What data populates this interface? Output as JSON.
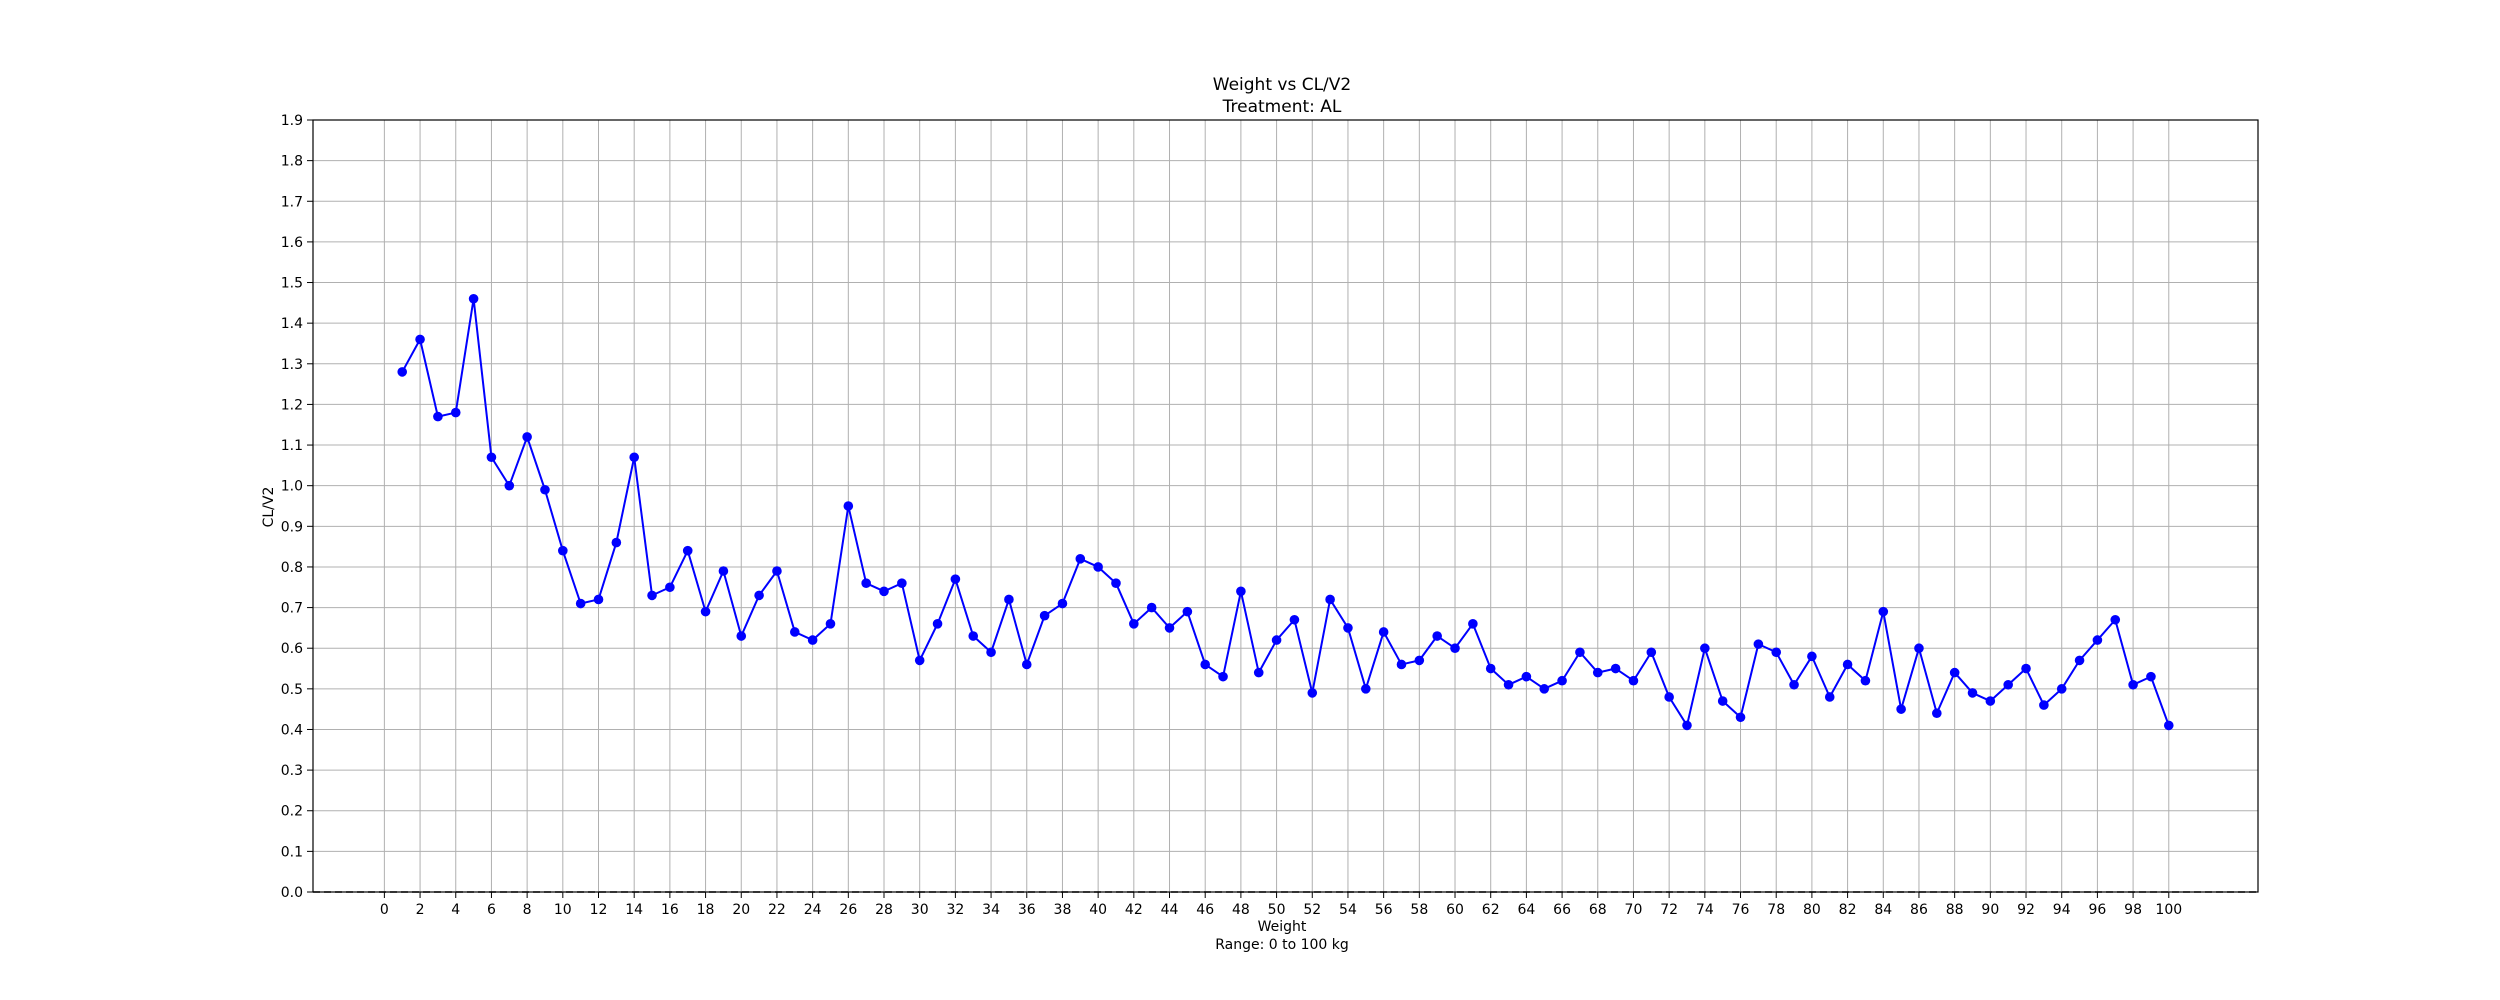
{
  "chart_data": {
    "type": "line",
    "title": "Weight vs CL/V2",
    "subtitle": "Treatment: AL",
    "xlabel": "Weight",
    "xlabel_note": "Range: 0 to 100 kg",
    "ylabel": "CL/V2",
    "xlim": [
      -4,
      105
    ],
    "ylim": [
      0,
      1.9
    ],
    "grid": true,
    "reference_line": {
      "y": 0,
      "style": "dashed",
      "color": "#000000"
    },
    "x_ticks": [
      0,
      2,
      4,
      6,
      8,
      10,
      12,
      14,
      16,
      18,
      20,
      22,
      24,
      26,
      28,
      30,
      32,
      34,
      36,
      38,
      40,
      42,
      44,
      46,
      48,
      50,
      52,
      54,
      56,
      58,
      60,
      62,
      64,
      66,
      68,
      70,
      72,
      74,
      76,
      78,
      80,
      82,
      84,
      86,
      88,
      90,
      92,
      94,
      96,
      98,
      100
    ],
    "y_ticks": [
      0.0,
      0.1,
      0.2,
      0.3,
      0.4,
      0.5,
      0.6,
      0.7,
      0.8,
      0.9,
      1.0,
      1.1,
      1.2,
      1.3,
      1.4,
      1.5,
      1.6,
      1.7,
      1.8,
      1.9
    ],
    "series": [
      {
        "color": "#0000ff",
        "x": [
          1,
          2,
          3,
          4,
          5,
          6,
          7,
          8,
          9,
          10,
          11,
          12,
          13,
          14,
          15,
          16,
          17,
          18,
          19,
          20,
          21,
          22,
          23,
          24,
          25,
          26,
          27,
          28,
          29,
          30,
          31,
          32,
          33,
          34,
          35,
          36,
          37,
          38,
          39,
          40,
          41,
          42,
          43,
          44,
          45,
          46,
          47,
          48,
          49,
          50,
          51,
          52,
          53,
          54,
          55,
          56,
          57,
          58,
          59,
          60,
          61,
          62,
          63,
          64,
          65,
          66,
          67,
          68,
          69,
          70,
          71,
          72,
          73,
          74,
          75,
          76,
          77,
          78,
          79,
          80,
          81,
          82,
          83,
          84,
          85,
          86,
          87,
          88,
          89,
          90,
          91,
          92,
          93,
          94,
          95,
          96,
          97,
          98,
          99,
          100
        ],
        "y": [
          1.28,
          1.36,
          1.17,
          1.18,
          1.46,
          1.07,
          1.0,
          1.12,
          0.99,
          0.84,
          0.71,
          0.72,
          0.86,
          1.07,
          0.73,
          0.75,
          0.84,
          0.69,
          0.79,
          0.63,
          0.73,
          0.79,
          0.64,
          0.62,
          0.66,
          0.95,
          0.76,
          0.74,
          0.76,
          0.57,
          0.66,
          0.77,
          0.63,
          0.59,
          0.72,
          0.56,
          0.68,
          0.71,
          0.82,
          0.8,
          0.76,
          0.66,
          0.7,
          0.65,
          0.69,
          0.56,
          0.53,
          0.74,
          0.54,
          0.62,
          0.67,
          0.49,
          0.72,
          0.65,
          0.5,
          0.64,
          0.56,
          0.57,
          0.63,
          0.6,
          0.66,
          0.55,
          0.51,
          0.53,
          0.5,
          0.52,
          0.59,
          0.54,
          0.55,
          0.52,
          0.59,
          0.48,
          0.41,
          0.6,
          0.47,
          0.43,
          0.61,
          0.59,
          0.51,
          0.58,
          0.48,
          0.56,
          0.52,
          0.69,
          0.45,
          0.6,
          0.44,
          0.54,
          0.49,
          0.47,
          0.51,
          0.55,
          0.46,
          0.5,
          0.57,
          0.62,
          0.67,
          0.51,
          0.53,
          0.41
        ]
      }
    ]
  }
}
